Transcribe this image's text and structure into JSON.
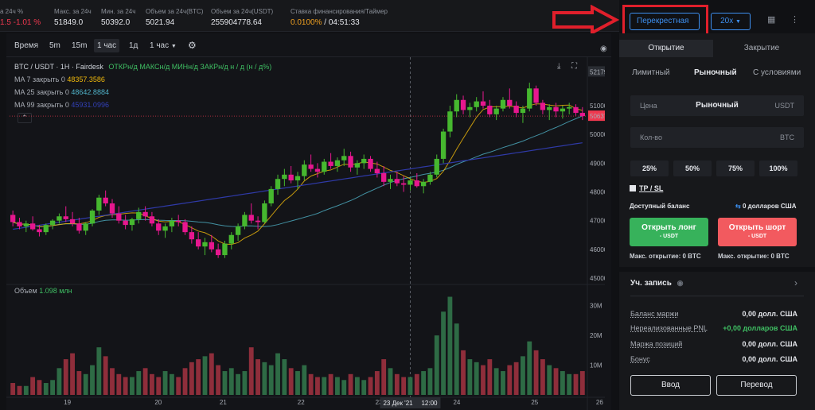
{
  "stats": [
    {
      "label": "а 24ч %",
      "value": "1.5 -1.01 %",
      "neg": true
    },
    {
      "label": "Макс. за 24ч",
      "value": "51849.0"
    },
    {
      "label": "Мин. за 24ч",
      "value": "50392.0"
    },
    {
      "label": "Объем за 24ч(BTC)",
      "value": "5021.94"
    },
    {
      "label": "Объем за 24ч(USDT)",
      "value": "255904778.64"
    },
    {
      "label": "Ставка финансирования/Таймер",
      "value_a": "0.0100%",
      "value_b": " / 04:51:33"
    }
  ],
  "margin_mode": "Перекрестная",
  "leverage": "20x",
  "toolbar": [
    "Время",
    "5m",
    "15m",
    "1 час",
    "1д",
    "1 час"
  ],
  "toolbar_active": 3,
  "symbol_line": "BTC / USDT · 1H · Fairdesk",
  "ohlc_line": "ОТКРн/д МАКСн/д МИНн/д ЗАКРн/д н / д (н / д%)",
  "ma": [
    {
      "label": "MA 7 закрыть 0",
      "value": "48357.3586",
      "color": "#f0b90b"
    },
    {
      "label": "MA 25 закрыть 0",
      "value": "48642.8884",
      "color": "#4fb0c6"
    },
    {
      "label": "MA 99 закрыть 0",
      "value": "45931.0996",
      "color": "#2f3aa8"
    }
  ],
  "volume_label": "Объем",
  "volume_value": "1.098 млн",
  "price_axis": [
    "52179.3",
    "51000.0",
    "50637.5",
    "50000.0",
    "49000.0",
    "48000.0",
    "47000.0",
    "46000.0",
    "45000.0"
  ],
  "vol_axis": [
    "30M",
    "20M",
    "10M"
  ],
  "time_axis": [
    "19",
    "20",
    "21",
    "22",
    "23",
    "24",
    "25",
    "26"
  ],
  "crosshair_time": "23 Дек '21",
  "crosshair_hour": "12:00",
  "chart_data": {
    "type": "candlestick",
    "ylim": [
      45000,
      52300
    ],
    "ohlc": [
      [
        47200,
        47350,
        46800,
        46950
      ],
      [
        46950,
        47100,
        46700,
        46800
      ],
      [
        46800,
        47000,
        46600,
        46900
      ],
      [
        46900,
        47150,
        46650,
        46700
      ],
      [
        46700,
        46850,
        46450,
        46600
      ],
      [
        46600,
        46900,
        46500,
        46850
      ],
      [
        46850,
        47050,
        46700,
        47000
      ],
      [
        47000,
        47250,
        46900,
        47150
      ],
      [
        47150,
        47500,
        46950,
        47050
      ],
      [
        47050,
        47300,
        46800,
        46900
      ],
      [
        46900,
        47100,
        46550,
        46650
      ],
      [
        46650,
        46950,
        46500,
        46900
      ],
      [
        46900,
        47400,
        46800,
        47350
      ],
      [
        47350,
        47900,
        47200,
        47800
      ],
      [
        47800,
        48050,
        47500,
        47600
      ],
      [
        47600,
        47750,
        47100,
        47250
      ],
      [
        47250,
        47500,
        46900,
        47000
      ],
      [
        47000,
        47200,
        46700,
        46850
      ],
      [
        46850,
        47100,
        46650,
        47050
      ],
      [
        47050,
        47450,
        46900,
        47300
      ],
      [
        47300,
        47500,
        47000,
        47150
      ],
      [
        47150,
        47300,
        46800,
        46900
      ],
      [
        46900,
        47050,
        46500,
        46650
      ],
      [
        46650,
        46900,
        46400,
        46800
      ],
      [
        46800,
        47100,
        46600,
        47000
      ],
      [
        47000,
        47200,
        46800,
        46950
      ],
      [
        46950,
        47050,
        46500,
        46600
      ],
      [
        46600,
        46800,
        46200,
        46350
      ],
      [
        46350,
        46600,
        46000,
        46100
      ],
      [
        46100,
        46400,
        45800,
        46250
      ],
      [
        46250,
        46500,
        45900,
        46000
      ],
      [
        46000,
        46200,
        45700,
        45800
      ],
      [
        45800,
        46300,
        45700,
        46200
      ],
      [
        46200,
        46600,
        46000,
        46500
      ],
      [
        46500,
        46900,
        46300,
        46800
      ],
      [
        46800,
        47300,
        46700,
        47200
      ],
      [
        47200,
        47600,
        46900,
        47000
      ],
      [
        47000,
        47150,
        46700,
        46950
      ],
      [
        46950,
        47700,
        46900,
        47600
      ],
      [
        47600,
        48200,
        47500,
        48100
      ],
      [
        48100,
        48600,
        47900,
        48450
      ],
      [
        48450,
        48800,
        48200,
        48600
      ],
      [
        48600,
        48900,
        48300,
        48400
      ],
      [
        48400,
        48700,
        48100,
        48550
      ],
      [
        48550,
        49100,
        48400,
        48950
      ],
      [
        48950,
        49300,
        48700,
        48800
      ],
      [
        48800,
        49000,
        48500,
        48700
      ],
      [
        48700,
        49150,
        48600,
        49050
      ],
      [
        49050,
        49350,
        48800,
        48900
      ],
      [
        48900,
        49200,
        48700,
        49100
      ],
      [
        49100,
        49500,
        48900,
        49250
      ],
      [
        49250,
        49400,
        48700,
        48850
      ],
      [
        48850,
        49100,
        48600,
        49000
      ],
      [
        49000,
        49300,
        48800,
        49150
      ],
      [
        49150,
        49250,
        48700,
        48800
      ],
      [
        48800,
        49050,
        48500,
        48650
      ],
      [
        48650,
        48900,
        48200,
        48350
      ],
      [
        48350,
        48600,
        48100,
        48450
      ],
      [
        48450,
        48700,
        48200,
        48300
      ],
      [
        48300,
        48550,
        48000,
        48250
      ],
      [
        48250,
        48500,
        48050,
        48400
      ],
      [
        48400,
        48650,
        48150,
        48200
      ],
      [
        48200,
        48450,
        47950,
        48350
      ],
      [
        48350,
        48700,
        48250,
        48600
      ],
      [
        48600,
        49300,
        48500,
        49150
      ],
      [
        49150,
        50200,
        49000,
        50100
      ],
      [
        50100,
        51000,
        49900,
        50800
      ],
      [
        50800,
        51400,
        50600,
        51200
      ],
      [
        51200,
        51350,
        50700,
        50850
      ],
      [
        50850,
        51100,
        50600,
        50950
      ],
      [
        50950,
        51300,
        50800,
        51150
      ],
      [
        51150,
        51500,
        50900,
        51000
      ],
      [
        51000,
        51200,
        50600,
        50700
      ],
      [
        50700,
        51000,
        50500,
        50900
      ],
      [
        50900,
        51300,
        50800,
        51200
      ],
      [
        51200,
        51600,
        50900,
        51000
      ],
      [
        51000,
        51150,
        50600,
        50750
      ],
      [
        50750,
        51000,
        50400,
        50900
      ],
      [
        50900,
        51800,
        50800,
        51600
      ],
      [
        51600,
        51700,
        51000,
        51100
      ],
      [
        51100,
        51200,
        50700,
        50850
      ],
      [
        50850,
        51050,
        50500,
        50950
      ],
      [
        50950,
        51100,
        50600,
        50800
      ],
      [
        50800,
        51000,
        50550,
        50900
      ],
      [
        50900,
        51100,
        50700,
        50950
      ],
      [
        50950,
        51050,
        50650,
        50750
      ],
      [
        50750,
        50950,
        50500,
        50637.5
      ]
    ],
    "volumes": [
      4,
      3,
      3,
      6,
      5,
      4,
      5,
      9,
      12,
      14,
      8,
      7,
      10,
      16,
      13,
      9,
      7,
      6,
      6,
      8,
      9,
      7,
      6,
      8,
      7,
      6,
      9,
      11,
      12,
      13,
      14,
      10,
      8,
      9,
      7,
      8,
      16,
      12,
      11,
      10,
      14,
      12,
      9,
      8,
      10,
      7,
      6,
      6,
      7,
      6,
      5,
      7,
      6,
      5,
      6,
      8,
      12,
      9,
      7,
      6,
      6,
      7,
      8,
      9,
      20,
      28,
      33,
      24,
      15,
      12,
      11,
      10,
      12,
      9,
      8,
      10,
      11,
      13,
      18,
      15,
      12,
      10,
      9,
      8,
      7,
      7,
      8
    ]
  },
  "right_panel": {
    "tab_open": "Открытие",
    "tab_close": "Закрытие",
    "order_types": [
      "Лимитный",
      "Рыночный",
      "С условиями"
    ],
    "price_label": "Цена",
    "price_value": "Рыночный",
    "price_unit": "USDT",
    "qty_label": "Кол-во",
    "qty_unit": "BTC",
    "pcts": [
      "25%",
      "50%",
      "75%",
      "100%"
    ],
    "tpsl": "TP / SL",
    "balance_label": "Доступный баланс",
    "balance_value": "0 долларов США",
    "long_label": "Открыть лонг",
    "long_sub": "- USDT",
    "short_label": "Открыть шорт",
    "short_sub": "- USDT",
    "max_long": "Макс. открытие: 0 BTC",
    "max_short": "Макс. открытие: 0 BTC"
  },
  "account": {
    "title": "Уч. запись",
    "rows": [
      {
        "label": "Баланс маржи",
        "value": "0,00 долл. США"
      },
      {
        "label": "Нереализованные PNL",
        "value": "+0,00 долларов США",
        "green": true
      },
      {
        "label": "Маржа позиций",
        "value": "0,00 долл. США"
      },
      {
        "label": "Бонус",
        "value": "0,00 долл. США"
      }
    ],
    "deposit": "Ввод",
    "transfer": "Перевод"
  }
}
